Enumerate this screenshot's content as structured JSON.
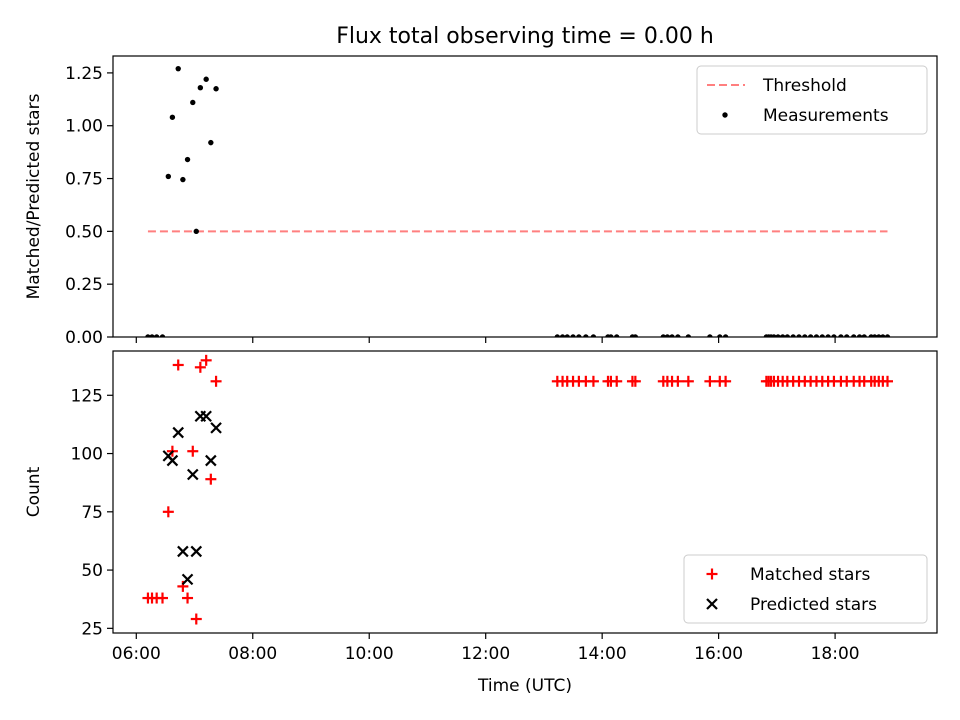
{
  "figure": {
    "title": "Flux total observing time = 0.00 h"
  },
  "chart_data": [
    {
      "type": "scatter",
      "xlabel": "",
      "ylabel": "Matched/Predicted stars",
      "xlim": [
        5.6,
        19.75
      ],
      "ylim": [
        0,
        1.33
      ],
      "x_tick_values": [
        6,
        8,
        10,
        12,
        14,
        16,
        18
      ],
      "y_ticks": [
        "0.00",
        "0.25",
        "0.50",
        "0.75",
        "1.00",
        "1.25"
      ],
      "y_tick_values": [
        0,
        0.25,
        0.5,
        0.75,
        1.0,
        1.25
      ],
      "legend_position": "upper right",
      "series": [
        {
          "name": "Threshold",
          "kind": "line",
          "style": "dashed",
          "color": "#ff7f7f",
          "x": [
            6.2,
            18.9
          ],
          "y": [
            0.5,
            0.5
          ]
        },
        {
          "name": "Measurements",
          "kind": "scatter",
          "marker": "dot",
          "color": "#000000",
          "x": [
            6.2,
            6.27,
            6.35,
            6.45,
            6.55,
            6.62,
            6.72,
            6.8,
            6.88,
            6.97,
            7.03,
            7.1,
            7.2,
            7.28,
            7.37,
            13.23,
            13.32,
            13.4,
            13.5,
            13.6,
            13.72,
            13.85,
            14.1,
            14.15,
            14.25,
            14.52,
            14.57,
            15.05,
            15.12,
            15.2,
            15.3,
            15.48,
            15.85,
            16.02,
            16.12,
            16.82,
            16.86,
            16.9,
            16.95,
            17.02,
            17.1,
            17.18,
            17.28,
            17.38,
            17.48,
            17.58,
            17.68,
            17.78,
            17.88,
            17.98,
            18.1,
            18.2,
            18.32,
            18.42,
            18.5,
            18.62,
            18.68,
            18.75,
            18.82,
            18.9
          ],
          "y": [
            0,
            0,
            0,
            0,
            0.76,
            1.04,
            1.27,
            0.745,
            0.84,
            1.11,
            0.5,
            1.18,
            1.22,
            0.92,
            1.175,
            0,
            0,
            0,
            0,
            0,
            0,
            0,
            0,
            0,
            0,
            0,
            0,
            0,
            0,
            0,
            0,
            0,
            0,
            0,
            0,
            0,
            0,
            0,
            0,
            0,
            0,
            0,
            0,
            0,
            0,
            0,
            0,
            0,
            0,
            0,
            0,
            0,
            0,
            0,
            0,
            0,
            0,
            0,
            0,
            0
          ]
        }
      ]
    },
    {
      "type": "scatter",
      "xlabel": "Time (UTC)",
      "ylabel": "Count",
      "xlim": [
        5.6,
        19.75
      ],
      "ylim": [
        23,
        144
      ],
      "x_ticks": [
        "06:00",
        "08:00",
        "10:00",
        "12:00",
        "14:00",
        "16:00",
        "18:00"
      ],
      "x_tick_values": [
        6,
        8,
        10,
        12,
        14,
        16,
        18
      ],
      "y_ticks": [
        "25",
        "50",
        "75",
        "100",
        "125"
      ],
      "y_tick_values": [
        25,
        50,
        75,
        100,
        125
      ],
      "legend_position": "lower right",
      "series": [
        {
          "name": "Matched stars",
          "kind": "scatter",
          "marker": "plus",
          "color": "#ff0000",
          "x": [
            6.2,
            6.27,
            6.35,
            6.45,
            6.55,
            6.62,
            6.72,
            6.8,
            6.88,
            6.97,
            7.03,
            7.1,
            7.2,
            7.28,
            7.37,
            13.23,
            13.32,
            13.4,
            13.5,
            13.6,
            13.72,
            13.85,
            14.1,
            14.15,
            14.25,
            14.52,
            14.57,
            15.05,
            15.12,
            15.2,
            15.3,
            15.48,
            15.85,
            16.02,
            16.12,
            16.82,
            16.86,
            16.9,
            16.95,
            17.02,
            17.1,
            17.18,
            17.28,
            17.38,
            17.48,
            17.58,
            17.68,
            17.78,
            17.88,
            17.98,
            18.1,
            18.2,
            18.32,
            18.42,
            18.5,
            18.62,
            18.68,
            18.75,
            18.82,
            18.9
          ],
          "y": [
            38,
            38,
            38,
            38,
            75,
            101,
            138,
            43,
            38,
            101,
            29,
            137,
            140,
            89,
            131,
            131,
            131,
            131,
            131,
            131,
            131,
            131,
            131,
            131,
            131,
            131,
            131,
            131,
            131,
            131,
            131,
            131,
            131,
            131,
            131,
            131,
            131,
            131,
            131,
            131,
            131,
            131,
            131,
            131,
            131,
            131,
            131,
            131,
            131,
            131,
            131,
            131,
            131,
            131,
            131,
            131,
            131,
            131,
            131,
            131
          ]
        },
        {
          "name": "Predicted stars",
          "kind": "scatter",
          "marker": "x",
          "color": "#000000",
          "x": [
            6.55,
            6.62,
            6.72,
            6.8,
            6.88,
            6.97,
            7.03,
            7.1,
            7.2,
            7.28,
            7.37
          ],
          "y": [
            99,
            97,
            109,
            58,
            46,
            91,
            58,
            116,
            116,
            97,
            111
          ]
        }
      ]
    }
  ]
}
